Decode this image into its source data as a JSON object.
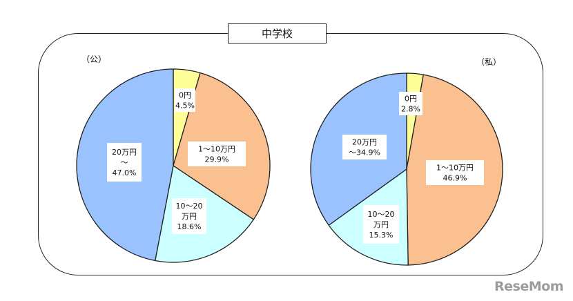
{
  "title": "中学校",
  "logo_text": "ReseMom",
  "colors": {
    "yellow": "#ffff99",
    "orange": "#fac090",
    "cyan": "#ccffff",
    "blue": "#99c2ff",
    "outline": "#1f1f1f"
  },
  "chart_data": [
    {
      "type": "pie",
      "title": "（公）",
      "slices": [
        {
          "name": "0円",
          "value": 4.5,
          "label_lines": [
            "0円",
            "4.5%"
          ],
          "color": "#ffff99"
        },
        {
          "name": "1～10万円",
          "value": 29.9,
          "label_lines": [
            "1～10万円",
            "29.9%"
          ],
          "color": "#fac090"
        },
        {
          "name": "10～20万円",
          "value": 18.6,
          "label_lines": [
            "10～20",
            "万円",
            "18.6%"
          ],
          "color": "#ccffff"
        },
        {
          "name": "20万円～",
          "value": 47.0,
          "label_lines": [
            "20万円",
            "～",
            "47.0%"
          ],
          "color": "#99c2ff"
        }
      ]
    },
    {
      "type": "pie",
      "title": "（私）",
      "slices": [
        {
          "name": "0円",
          "value": 2.8,
          "label_lines": [
            "0円",
            "2.8%"
          ],
          "color": "#ffff99"
        },
        {
          "name": "1～10万円",
          "value": 46.9,
          "label_lines": [
            "1～10万円",
            "46.9%"
          ],
          "color": "#fac090"
        },
        {
          "name": "10～20万円",
          "value": 15.3,
          "label_lines": [
            "10～20",
            "万円",
            "15.3%"
          ],
          "color": "#ccffff"
        },
        {
          "name": "20万円～",
          "value": 34.9,
          "label_lines": [
            "20万円",
            "～34.9%"
          ],
          "color": "#99c2ff"
        }
      ]
    }
  ]
}
